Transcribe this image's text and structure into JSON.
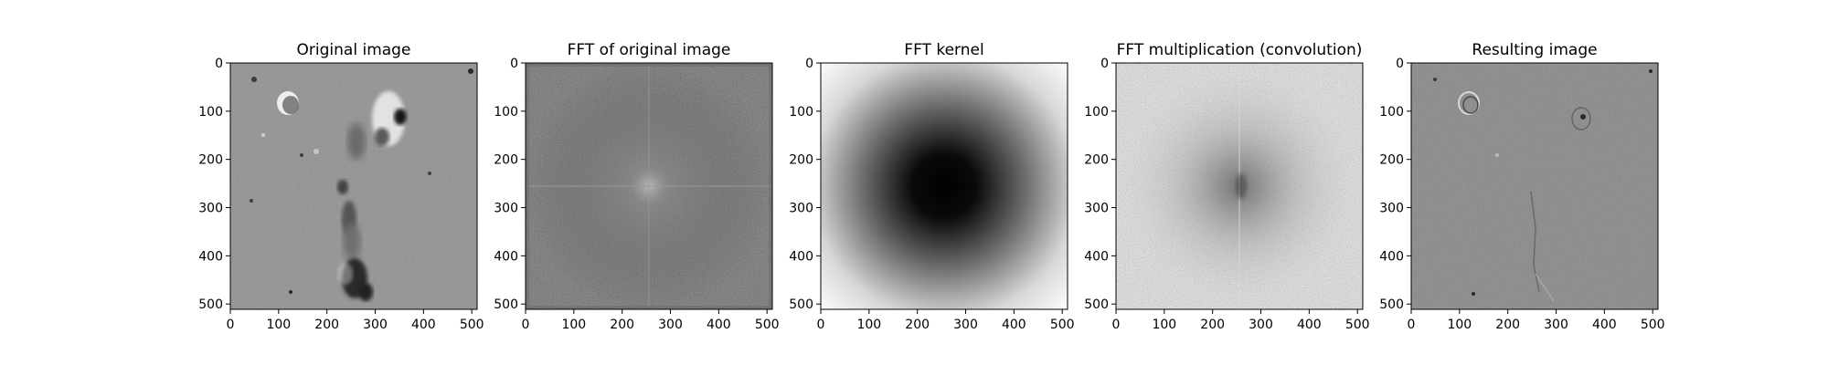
{
  "chart_data": [
    {
      "type": "heatmap",
      "title": "Original image",
      "colormap": "gray",
      "x_ticks": [
        0,
        100,
        200,
        300,
        400,
        500
      ],
      "y_ticks": [
        0,
        100,
        200,
        300,
        400,
        500
      ],
      "xlim": [
        0,
        511
      ],
      "ylim": [
        511,
        0
      ],
      "content": "grayscale surface image: mid-gray background, bright/dark blobs near (120,85), (340,110), elongated dark feature from (280,200) to (300,430)"
    },
    {
      "type": "heatmap",
      "title": "FFT of original image",
      "colormap": "gray",
      "x_ticks": [
        0,
        100,
        200,
        300,
        400,
        500
      ],
      "y_ticks": [
        0,
        100,
        200,
        300,
        400,
        500
      ],
      "xlim": [
        0,
        511
      ],
      "ylim": [
        511,
        0
      ],
      "content": "log-magnitude spectrum, dark gray noise with a bright center cross at (256,256)"
    },
    {
      "type": "heatmap",
      "title": "FFT kernel",
      "colormap": "gray",
      "x_ticks": [
        0,
        100,
        200,
        300,
        400,
        500
      ],
      "y_ticks": [
        0,
        100,
        200,
        300,
        400,
        500
      ],
      "xlim": [
        0,
        511
      ],
      "ylim": [
        511,
        0
      ],
      "content": "radial kernel: black at center (256,256), white toward corners"
    },
    {
      "type": "heatmap",
      "title": "FFT multiplication (convolution)",
      "colormap": "gray",
      "x_ticks": [
        0,
        100,
        200,
        300,
        400,
        500
      ],
      "y_ticks": [
        0,
        100,
        200,
        300,
        400,
        500
      ],
      "xlim": [
        0,
        511
      ],
      "ylim": [
        511,
        0
      ],
      "content": "light gray noise with darker central region"
    },
    {
      "type": "heatmap",
      "title": "Resulting image",
      "colormap": "gray",
      "x_ticks": [
        0,
        100,
        200,
        300,
        400,
        500
      ],
      "y_ticks": [
        0,
        100,
        200,
        300,
        400,
        500
      ],
      "xlim": [
        0,
        511
      ],
      "ylim": [
        511,
        0
      ],
      "content": "high-pass filtered image: flat mid-gray with faint edges of crater and features"
    }
  ]
}
